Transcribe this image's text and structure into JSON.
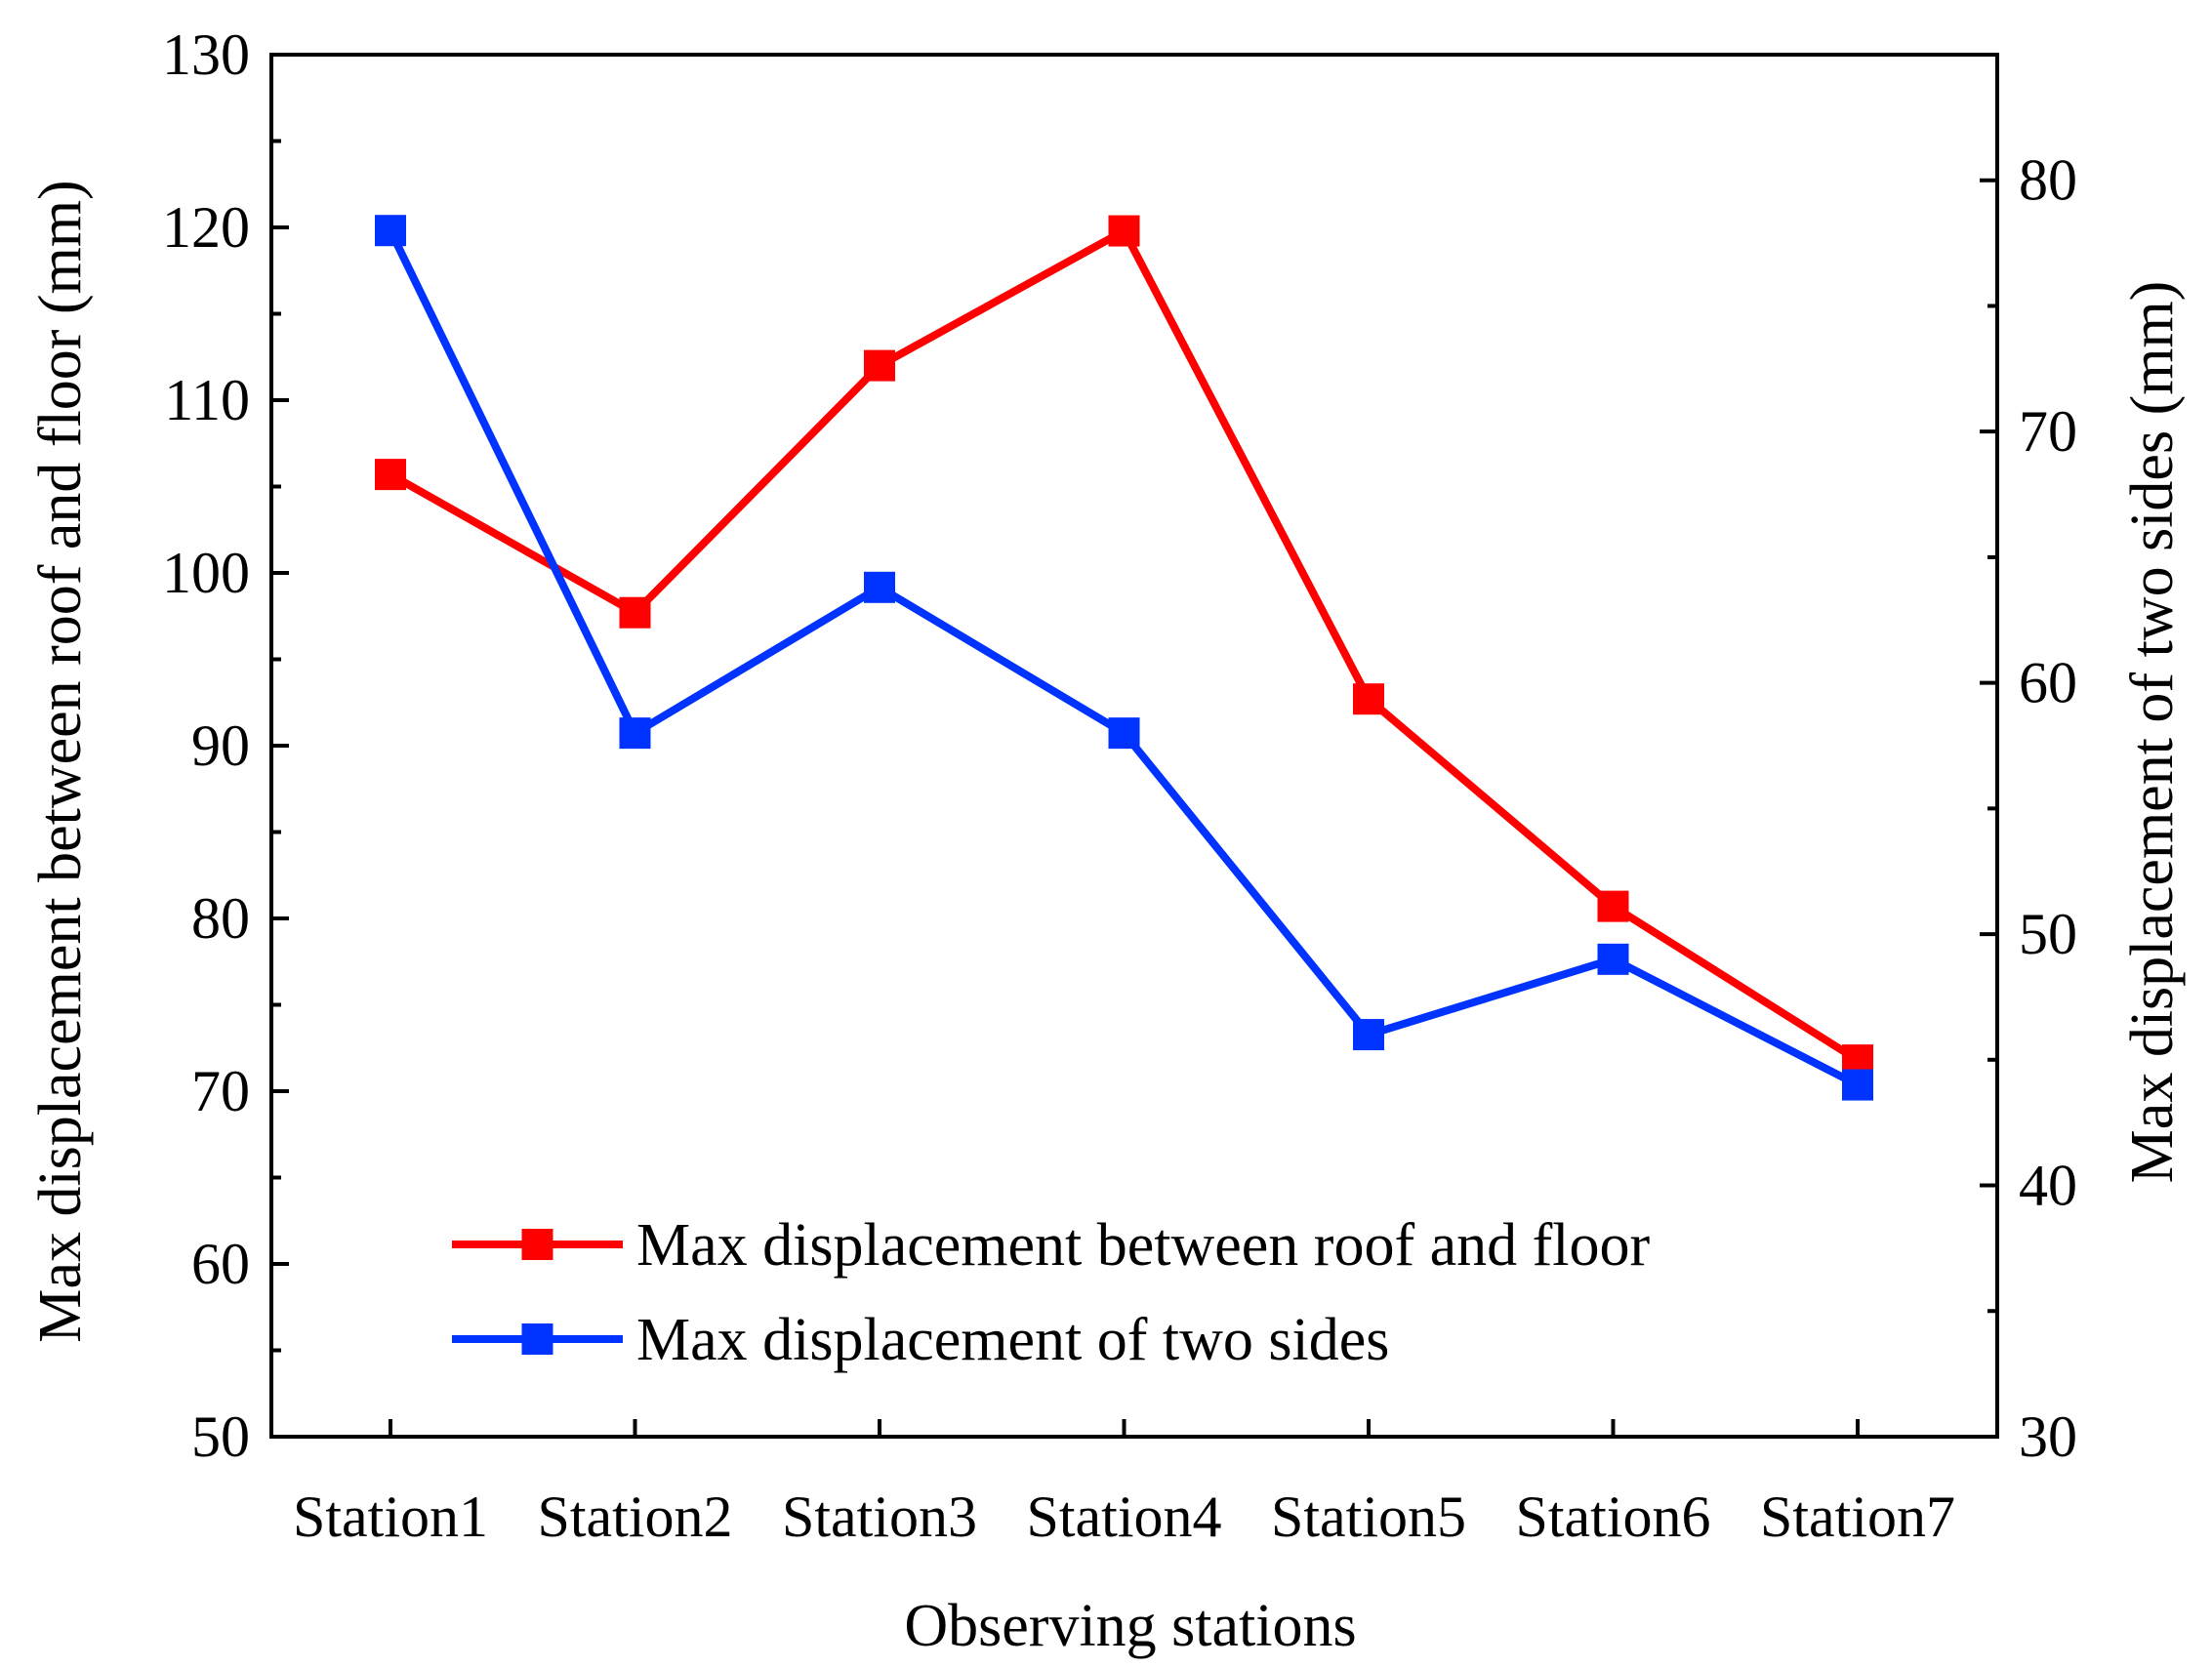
{
  "chart_data": {
    "type": "line",
    "title": "",
    "xlabel": "Observing stations",
    "ylabel_left": "Max displacement between roof and floor (mm)",
    "ylabel_right": "Max displacement of two sides (mm)",
    "categories": [
      "Station1",
      "Station2",
      "Station3",
      "Station4",
      "Station5",
      "Station6",
      "Station7"
    ],
    "ylim_left": [
      50,
      130
    ],
    "yticks_left": [
      50,
      60,
      70,
      80,
      90,
      100,
      110,
      120,
      130
    ],
    "ylim_right": [
      30,
      85
    ],
    "yticks_right": [
      30,
      40,
      50,
      60,
      70,
      80
    ],
    "grid": false,
    "legend_position": "bottom-center",
    "series": [
      {
        "name": "Max displacement between roof and floor",
        "axis": "left",
        "color": "#ff0000",
        "marker": "square",
        "values": [
          105.7,
          97.7,
          112.0,
          119.8,
          92.7,
          80.7,
          71.8
        ]
      },
      {
        "name": "Max displacement of two sides",
        "axis": "right",
        "color": "#0033ff",
        "marker": "square",
        "values": [
          78.0,
          58.0,
          63.8,
          58.0,
          46.0,
          49.0,
          44.0
        ]
      }
    ]
  }
}
